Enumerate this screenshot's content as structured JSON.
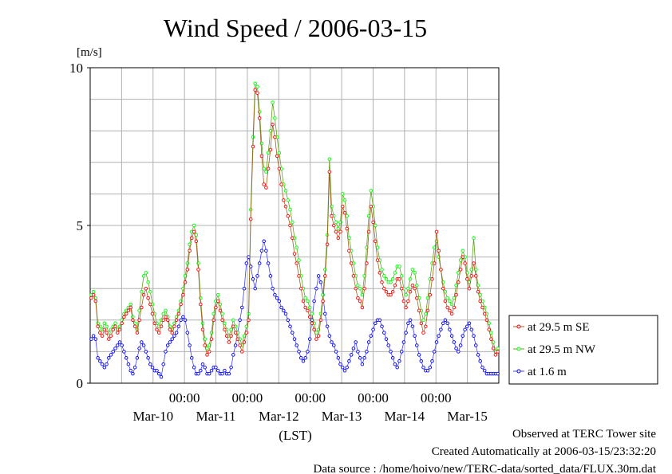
{
  "chart_data": {
    "type": "line",
    "title": "Wind Speed / 2006-03-15",
    "ylabel": "[m/s]",
    "xlabel": "(LST)",
    "ylim": [
      0,
      10
    ],
    "yticks": [
      "0",
      "5",
      "10"
    ],
    "xlim": [
      "2006-03-09 12:00",
      "2006-03-15 24:00"
    ],
    "xtick_time_label": "00:00",
    "xtick_date_labels": [
      "Mar-10",
      "Mar-11",
      "Mar-12",
      "Mar-13",
      "Mar-14",
      "Mar-15"
    ],
    "grid": true,
    "legend_position": "right",
    "series": [
      {
        "name": "at 29.5 m SE",
        "color": "#ff0000",
        "values": [
          2.7,
          2.8,
          2.6,
          1.8,
          1.6,
          1.5,
          1.7,
          1.6,
          1.4,
          1.5,
          1.7,
          1.8,
          1.6,
          1.7,
          1.9,
          2.1,
          2.2,
          2.3,
          2.4,
          2.0,
          1.8,
          1.6,
          2.0,
          2.4,
          2.8,
          3.0,
          2.7,
          2.5,
          2.2,
          1.9,
          1.7,
          1.6,
          1.8,
          2.0,
          2.1,
          2.0,
          1.7,
          1.6,
          1.8,
          2.0,
          2.2,
          2.5,
          2.8,
          3.2,
          3.6,
          4.2,
          4.6,
          4.8,
          4.5,
          3.6,
          2.5,
          1.7,
          1.2,
          0.9,
          1.0,
          1.4,
          2.0,
          2.4,
          2.6,
          2.3,
          2.0,
          1.7,
          1.5,
          1.3,
          1.5,
          1.8,
          1.6,
          1.4,
          1.2,
          1.0,
          1.3,
          1.6,
          2.0,
          5.2,
          7.5,
          9.3,
          9.2,
          8.4,
          7.2,
          6.3,
          6.2,
          6.8,
          7.4,
          8.2,
          7.8,
          7.2,
          6.8,
          6.3,
          5.8,
          5.6,
          5.3,
          5.0,
          4.6,
          4.1,
          3.8,
          3.4,
          3.0,
          2.6,
          2.4,
          2.3,
          2.1,
          1.9,
          1.7,
          1.4,
          1.5,
          2.0,
          2.6,
          3.4,
          4.4,
          6.7,
          5.3,
          5.0,
          4.8,
          4.6,
          4.8,
          5.6,
          5.4,
          4.9,
          4.2,
          3.8,
          3.4,
          3.0,
          2.7,
          2.6,
          2.4,
          3.0,
          3.8,
          4.8,
          5.6,
          5.1,
          4.5,
          3.9,
          3.5,
          3.2,
          3.0,
          2.9,
          2.8,
          2.8,
          2.9,
          3.1,
          3.3,
          3.3,
          3.0,
          2.6,
          2.4,
          2.6,
          2.9,
          3.1,
          3.0,
          2.7,
          2.3,
          1.9,
          1.6,
          1.8,
          2.3,
          2.8,
          3.3,
          3.8,
          4.8,
          4.2,
          3.6,
          3.0,
          2.6,
          2.4,
          2.3,
          2.2,
          2.4,
          2.8,
          3.2,
          3.6,
          4.0,
          3.8,
          3.3,
          3.0,
          3.4,
          3.8,
          3.4,
          2.9,
          2.6,
          2.4,
          2.2,
          2.0,
          1.7,
          1.4,
          1.1,
          0.9,
          1.0
        ],
        "__note": "values sampled every 48 min across the displayed window"
      },
      {
        "name": "at 29.5 m NW",
        "color": "#00ff00",
        "values": [
          2.8,
          2.9,
          2.7,
          1.9,
          1.8,
          1.7,
          1.9,
          1.8,
          1.6,
          1.7,
          1.8,
          1.9,
          1.7,
          1.8,
          2.0,
          2.2,
          2.3,
          2.4,
          2.5,
          2.1,
          1.9,
          1.7,
          2.3,
          2.9,
          3.4,
          3.5,
          3.2,
          2.9,
          2.5,
          2.2,
          1.9,
          1.8,
          2.0,
          2.2,
          2.3,
          2.1,
          1.8,
          1.7,
          1.9,
          2.1,
          2.3,
          2.6,
          3.0,
          3.4,
          3.8,
          4.4,
          4.8,
          5.0,
          4.7,
          3.8,
          2.7,
          1.9,
          1.4,
          1.1,
          1.2,
          1.6,
          2.2,
          2.6,
          2.8,
          2.5,
          2.2,
          1.9,
          1.7,
          1.5,
          1.7,
          2.0,
          1.8,
          1.6,
          1.4,
          1.2,
          1.5,
          1.8,
          2.2,
          5.5,
          7.8,
          9.5,
          9.4,
          8.6,
          7.6,
          6.8,
          6.7,
          7.3,
          8.0,
          8.9,
          8.4,
          7.8,
          7.3,
          6.8,
          6.3,
          6.1,
          5.8,
          5.5,
          5.1,
          4.6,
          4.3,
          3.9,
          3.4,
          3.0,
          2.7,
          2.6,
          2.4,
          2.2,
          1.9,
          1.6,
          1.7,
          2.2,
          2.8,
          3.6,
          4.7,
          7.1,
          5.6,
          5.3,
          5.1,
          4.9,
          5.1,
          6.0,
          5.8,
          5.3,
          4.6,
          4.2,
          3.8,
          3.4,
          3.1,
          3.0,
          2.8,
          3.4,
          4.3,
          5.3,
          6.1,
          5.6,
          5.0,
          4.3,
          3.9,
          3.6,
          3.4,
          3.3,
          3.2,
          3.2,
          3.3,
          3.5,
          3.7,
          3.7,
          3.4,
          3.0,
          2.8,
          3.0,
          3.3,
          3.6,
          3.5,
          3.1,
          2.7,
          2.3,
          2.0,
          2.2,
          2.7,
          3.3,
          3.8,
          4.3,
          4.5,
          4.0,
          3.6,
          3.2,
          2.9,
          2.7,
          2.6,
          2.5,
          2.7,
          3.1,
          3.5,
          3.9,
          4.2,
          4.0,
          3.5,
          3.2,
          3.6,
          4.6,
          3.6,
          3.1,
          2.8,
          2.6,
          2.4,
          2.2,
          1.9,
          1.6,
          1.3,
          1.0,
          1.1
        ],
        "__note": "values sampled every 48 min across the displayed window"
      },
      {
        "name": "at 1.6 m",
        "color": "#0000ff",
        "values": [
          1.4,
          1.5,
          1.4,
          0.8,
          0.7,
          0.6,
          0.5,
          0.6,
          0.8,
          0.9,
          1.0,
          1.1,
          1.2,
          1.3,
          1.2,
          1.0,
          0.8,
          0.6,
          0.4,
          0.3,
          0.5,
          0.8,
          1.1,
          1.3,
          1.2,
          1.0,
          0.8,
          0.6,
          0.5,
          0.4,
          0.4,
          0.3,
          0.2,
          0.6,
          1.0,
          1.2,
          1.3,
          1.4,
          1.5,
          1.6,
          1.8,
          2.0,
          2.1,
          2.0,
          1.6,
          1.2,
          0.8,
          0.5,
          0.3,
          0.3,
          0.4,
          0.6,
          0.5,
          0.3,
          0.3,
          0.4,
          0.5,
          0.5,
          0.4,
          0.3,
          0.3,
          0.4,
          0.3,
          0.3,
          0.5,
          0.9,
          1.2,
          1.6,
          2.0,
          2.4,
          3.0,
          3.8,
          4.0,
          3.7,
          3.3,
          3.0,
          3.4,
          3.8,
          4.2,
          4.5,
          4.2,
          3.8,
          3.4,
          3.0,
          2.8,
          2.7,
          2.6,
          2.4,
          2.3,
          2.2,
          2.0,
          1.8,
          1.6,
          1.4,
          1.2,
          1.0,
          0.8,
          0.7,
          0.8,
          1.0,
          1.4,
          2.0,
          2.6,
          3.0,
          3.4,
          3.2,
          2.8,
          2.2,
          1.8,
          1.5,
          1.3,
          1.2,
          1.0,
          0.8,
          0.6,
          0.5,
          0.4,
          0.5,
          0.7,
          0.9,
          1.1,
          1.3,
          1.0,
          0.8,
          0.6,
          0.8,
          1.0,
          1.3,
          1.5,
          1.7,
          1.9,
          2.0,
          2.0,
          1.8,
          1.6,
          1.4,
          1.2,
          1.0,
          0.8,
          0.6,
          0.5,
          0.7,
          1.0,
          1.3,
          1.6,
          1.9,
          2.0,
          1.8,
          1.5,
          1.2,
          0.9,
          0.7,
          0.5,
          0.4,
          0.4,
          0.5,
          0.7,
          1.0,
          1.3,
          1.5,
          1.7,
          1.9,
          2.0,
          1.9,
          1.7,
          1.5,
          1.3,
          1.1,
          1.0,
          1.2,
          1.5,
          1.7,
          1.8,
          1.9,
          1.7,
          1.5,
          1.2,
          0.9,
          0.7,
          0.5,
          0.4,
          0.3,
          0.3,
          0.3,
          0.3,
          0.3,
          0.3
        ],
        "__note": "values sampled every 48 min across the displayed window"
      }
    ]
  },
  "footer": {
    "line1": "Observed at TERC Tower site",
    "line2": "Created Automatically at 2006-03-15/23:32:20",
    "line3": "Data source : /home/hoivo/new/TERC-data/sorted_data/FLUX.30m.dat"
  }
}
